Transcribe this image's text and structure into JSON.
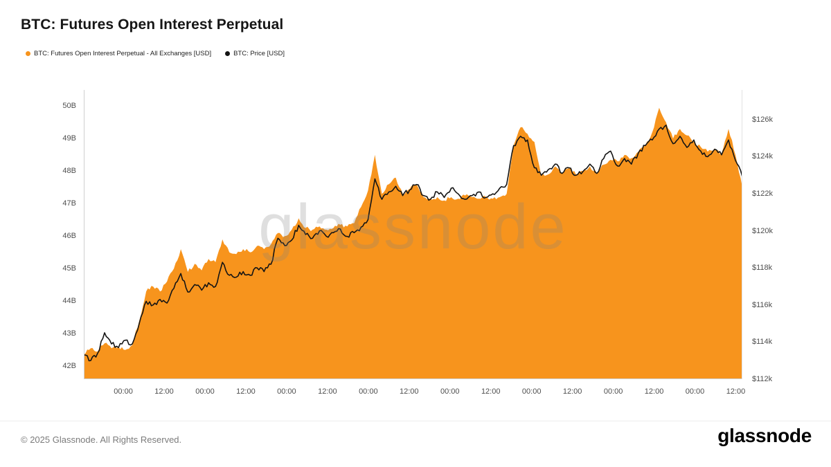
{
  "header": {
    "title": "BTC: Futures Open Interest Perpetual"
  },
  "legend": [
    {
      "label": "BTC: Futures Open Interest Perpetual - All Exchanges [USD]",
      "color": "#F7941D"
    },
    {
      "label": "BTC: Price [USD]",
      "color": "#141414"
    }
  ],
  "watermark": "glassnode",
  "footer": {
    "copyright": "© 2025 Glassnode. All Rights Reserved.",
    "logo": "glassnode"
  },
  "chart_data": {
    "type": "area+line",
    "title": "BTC: Futures Open Interest Perpetual",
    "legend_position": "top-left",
    "grid": false,
    "x_axis": {
      "labels": [
        "00:00",
        "12:00",
        "00:00",
        "12:00",
        "00:00",
        "12:00",
        "00:00",
        "12:00",
        "00:00",
        "12:00",
        "00:00",
        "12:00",
        "00:00",
        "12:00",
        "00:00",
        "12:00"
      ],
      "first_frac": 0.06,
      "step_frac": 0.062
    },
    "y_left": {
      "range": [
        41.6,
        50.5
      ],
      "unit": "B USD",
      "ticks": [
        {
          "label": "50B",
          "value": 50
        },
        {
          "label": "49B",
          "value": 49
        },
        {
          "label": "48B",
          "value": 48
        },
        {
          "label": "47B",
          "value": 47
        },
        {
          "label": "46B",
          "value": 46
        },
        {
          "label": "45B",
          "value": 45
        },
        {
          "label": "44B",
          "value": 44
        },
        {
          "label": "43B",
          "value": 43
        },
        {
          "label": "42B",
          "value": 42
        }
      ]
    },
    "y_right": {
      "range": [
        112,
        127.6
      ],
      "unit": "k USD",
      "ticks": [
        {
          "label": "$126k",
          "value": 126
        },
        {
          "label": "$124k",
          "value": 124
        },
        {
          "label": "$122k",
          "value": 122
        },
        {
          "label": "$120k",
          "value": 120
        },
        {
          "label": "$118k",
          "value": 118
        },
        {
          "label": "$116k",
          "value": 116
        },
        {
          "label": "$114k",
          "value": 114
        },
        {
          "label": "$112k",
          "value": 112
        }
      ]
    },
    "series": [
      {
        "name": "BTC: Futures Open Interest Perpetual - All Exchanges [USD]",
        "type": "area",
        "axis": "left",
        "color": "#F7941D",
        "unit": "B",
        "values": [
          42.35,
          42.55,
          42.45,
          42.7,
          42.55,
          42.6,
          42.5,
          42.65,
          43.4,
          44.3,
          44.45,
          44.3,
          44.6,
          45.0,
          45.6,
          44.9,
          45.15,
          44.95,
          45.3,
          45.2,
          45.9,
          45.5,
          45.45,
          45.6,
          45.5,
          45.7,
          45.6,
          45.75,
          46.1,
          46.0,
          46.2,
          46.55,
          46.25,
          46.2,
          46.3,
          46.2,
          46.25,
          46.35,
          46.3,
          46.4,
          46.9,
          47.4,
          48.5,
          47.3,
          47.6,
          47.8,
          47.3,
          47.45,
          47.6,
          47.2,
          47.15,
          47.2,
          47.1,
          47.2,
          47.15,
          47.25,
          47.2,
          47.15,
          47.2,
          47.15,
          47.2,
          47.3,
          48.8,
          49.35,
          49.15,
          48.9,
          47.85,
          47.9,
          48.15,
          47.95,
          48.1,
          47.9,
          48.0,
          48.15,
          47.95,
          48.2,
          48.35,
          48.3,
          48.5,
          48.4,
          48.6,
          48.8,
          49.2,
          49.95,
          49.5,
          49.0,
          49.3,
          49.1,
          48.9,
          48.75,
          48.6,
          48.7,
          48.55,
          49.3,
          48.5,
          47.5
        ]
      },
      {
        "name": "BTC: Price [USD]",
        "type": "line",
        "axis": "right",
        "color": "#141414",
        "unit": "k",
        "values": [
          113.3,
          113.0,
          113.4,
          114.5,
          113.9,
          113.7,
          114.1,
          113.9,
          115.0,
          116.2,
          116.0,
          116.3,
          116.1,
          116.9,
          117.7,
          116.7,
          117.1,
          116.8,
          117.2,
          117.0,
          118.3,
          117.6,
          117.5,
          117.8,
          117.6,
          118.0,
          117.8,
          118.2,
          119.6,
          119.2,
          119.5,
          120.3,
          119.8,
          119.6,
          120.0,
          119.7,
          119.9,
          120.1,
          119.7,
          119.9,
          120.2,
          120.6,
          122.8,
          121.7,
          122.1,
          122.4,
          121.9,
          122.2,
          122.5,
          121.9,
          121.7,
          122.1,
          121.8,
          122.3,
          122.0,
          121.7,
          121.9,
          122.1,
          121.8,
          122.0,
          122.3,
          122.5,
          124.6,
          125.1,
          124.9,
          123.4,
          123.0,
          123.3,
          123.6,
          123.1,
          123.4,
          123.0,
          123.2,
          123.6,
          123.1,
          123.9,
          124.3,
          123.5,
          123.9,
          123.6,
          124.2,
          124.6,
          124.9,
          125.5,
          125.7,
          124.7,
          125.1,
          124.5,
          124.9,
          124.3,
          124.0,
          124.4,
          124.1,
          124.9,
          123.8,
          122.9
        ]
      }
    ]
  }
}
